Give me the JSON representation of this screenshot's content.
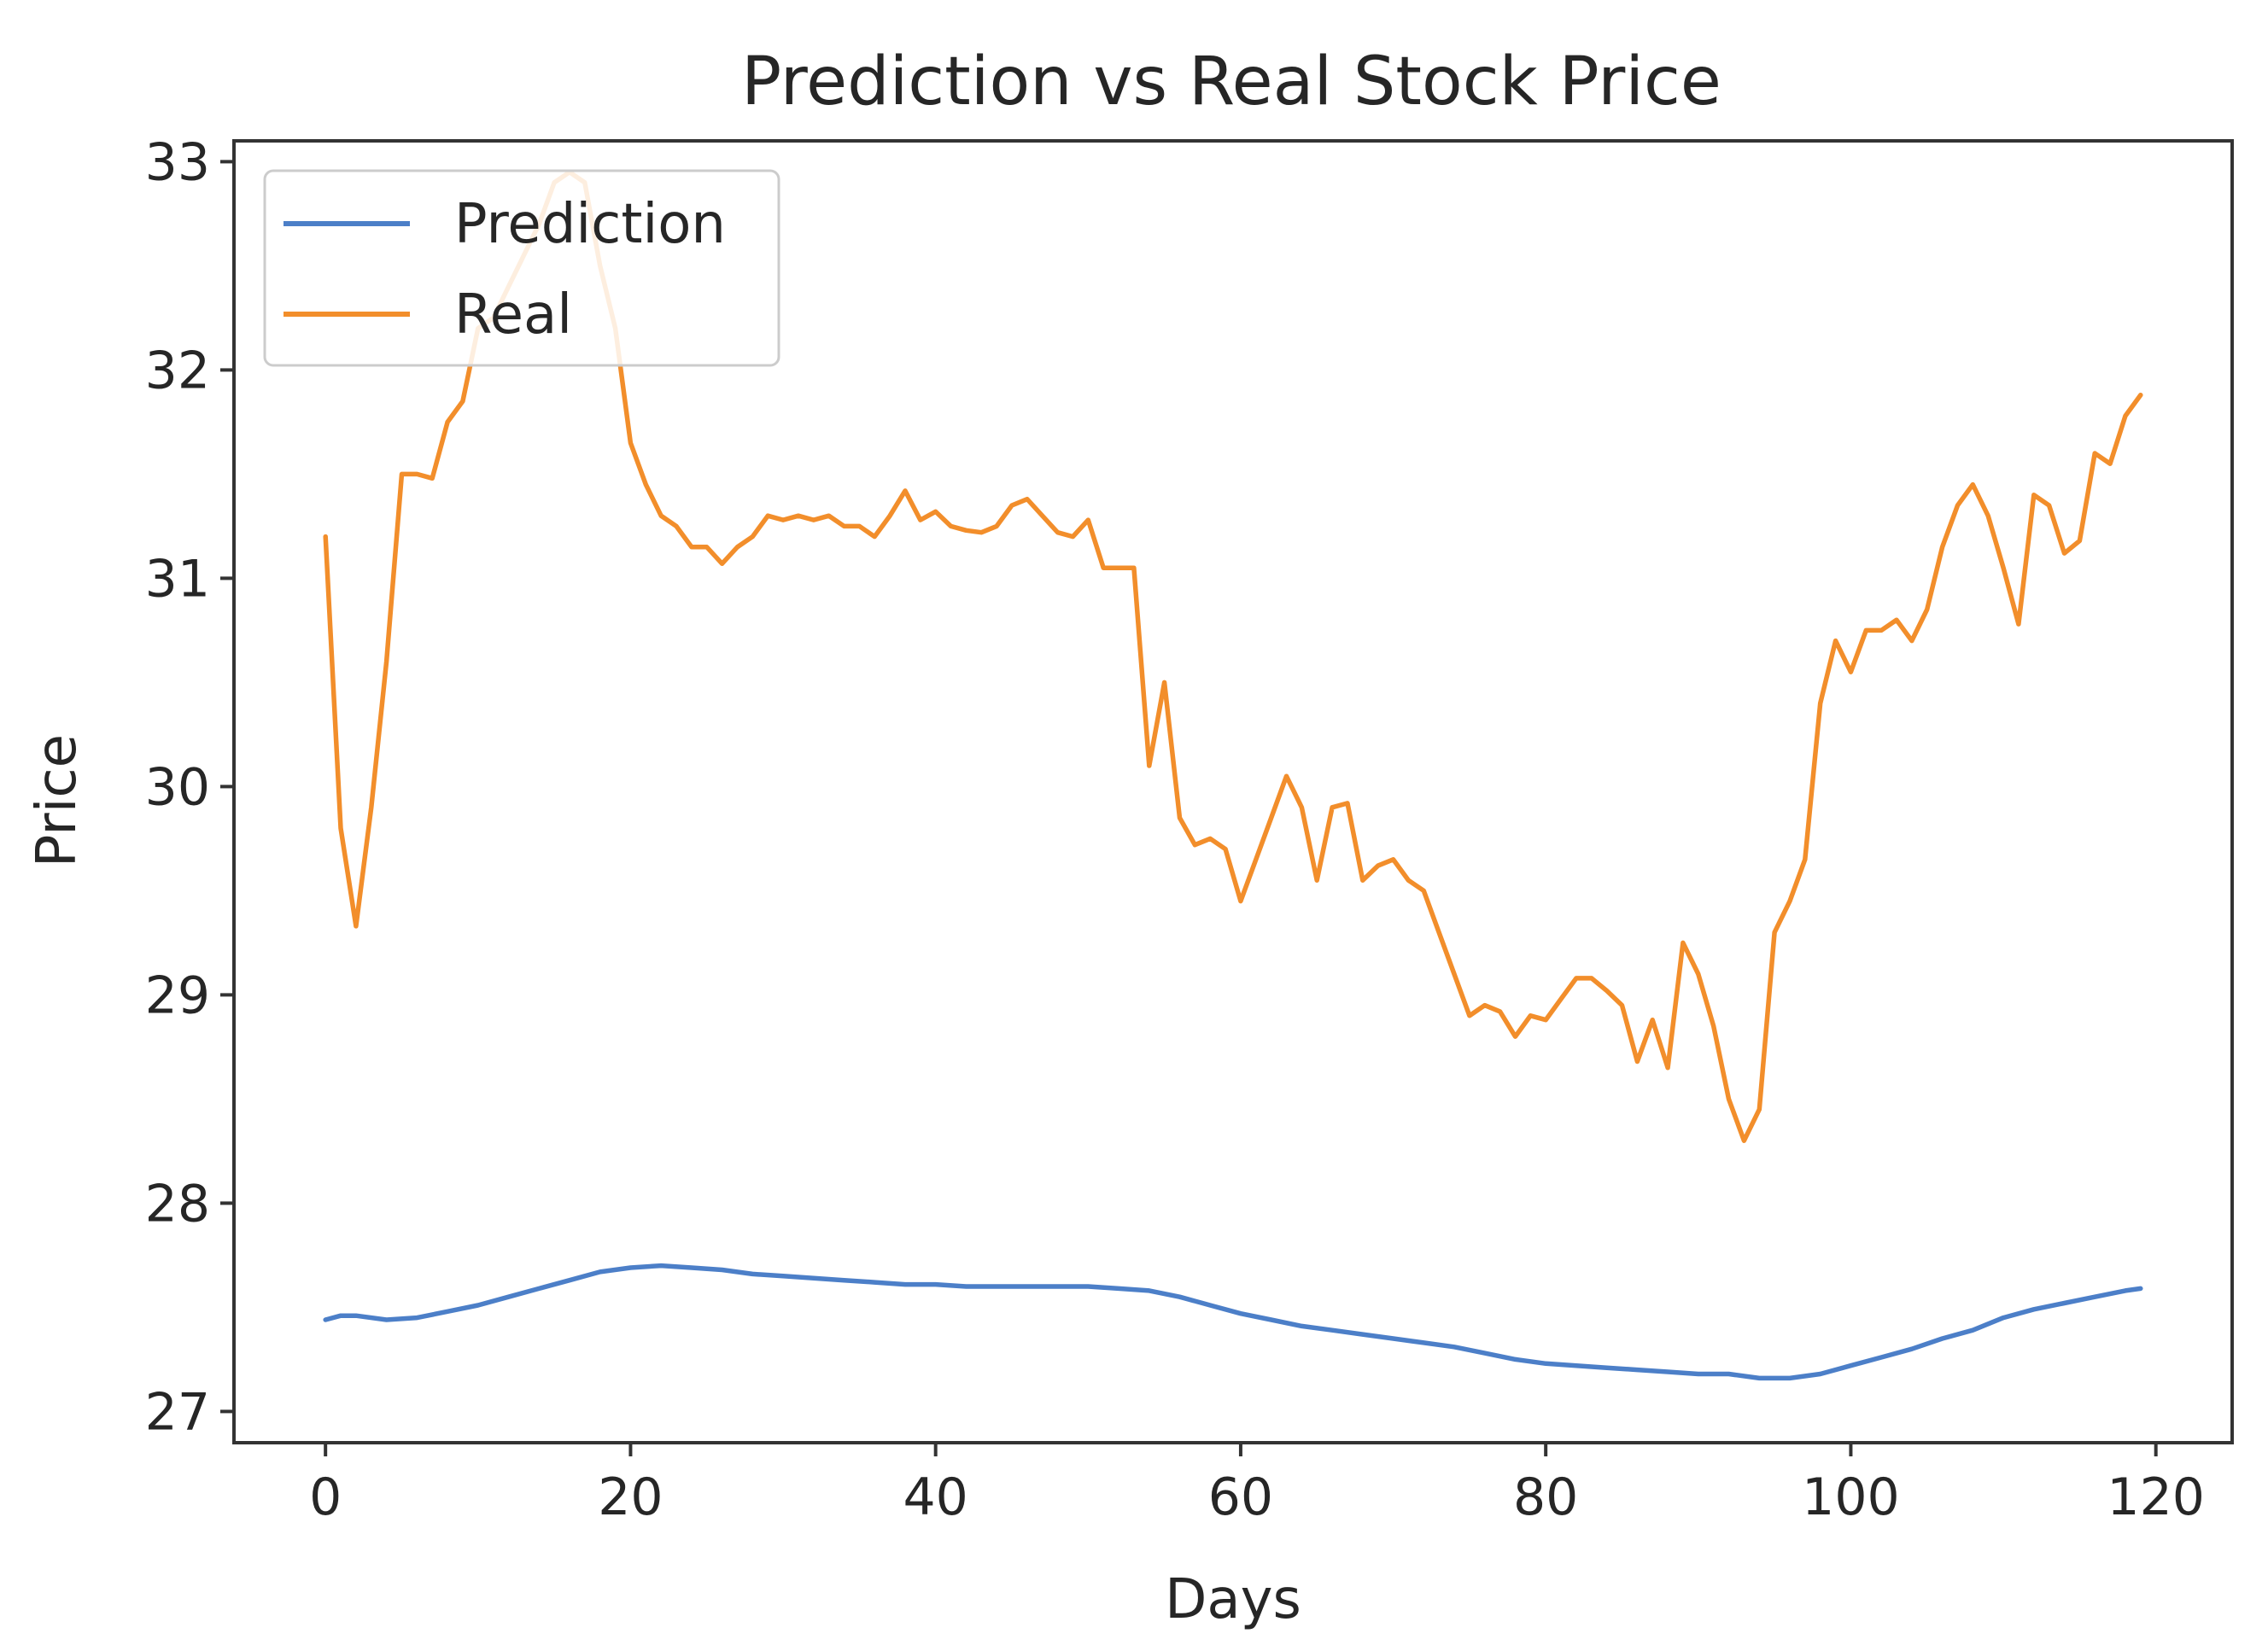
{
  "chart_data": {
    "type": "line",
    "title": "Prediction vs Real Stock Price",
    "xlabel": "Days",
    "ylabel": "Price",
    "xlim": [
      -6,
      125
    ],
    "ylim": [
      26.85,
      33.1
    ],
    "xticks": [
      0,
      20,
      40,
      60,
      80,
      100,
      120
    ],
    "yticks": [
      27,
      28,
      29,
      30,
      31,
      32,
      33
    ],
    "grid": false,
    "legend_position": "top-left",
    "series": [
      {
        "name": "Prediction",
        "color": "#4c7fc8",
        "x": [
          0,
          1,
          2,
          4,
          6,
          8,
          10,
          12,
          14,
          16,
          18,
          20,
          22,
          24,
          26,
          28,
          30,
          32,
          34,
          36,
          38,
          40,
          42,
          44,
          46,
          48,
          50,
          52,
          54,
          56,
          58,
          60,
          62,
          64,
          66,
          68,
          70,
          72,
          74,
          76,
          78,
          80,
          82,
          84,
          86,
          88,
          90,
          92,
          94,
          96,
          98,
          100,
          102,
          104,
          106,
          108,
          110,
          112,
          114,
          116,
          118,
          119
        ],
        "y": [
          27.44,
          27.46,
          27.46,
          27.44,
          27.45,
          27.48,
          27.51,
          27.55,
          27.59,
          27.63,
          27.67,
          27.69,
          27.7,
          27.69,
          27.68,
          27.66,
          27.65,
          27.64,
          27.63,
          27.62,
          27.61,
          27.61,
          27.6,
          27.6,
          27.6,
          27.6,
          27.6,
          27.59,
          27.58,
          27.55,
          27.51,
          27.47,
          27.44,
          27.41,
          27.39,
          27.37,
          27.35,
          27.33,
          27.31,
          27.28,
          27.25,
          27.23,
          27.22,
          27.21,
          27.2,
          27.19,
          27.18,
          27.18,
          27.16,
          27.16,
          27.18,
          27.22,
          27.26,
          27.3,
          27.35,
          27.39,
          27.45,
          27.49,
          27.52,
          27.55,
          27.58,
          27.59
        ]
      },
      {
        "name": "Real",
        "color": "#f28e2b",
        "x": [
          0,
          1,
          2,
          3,
          4,
          5,
          6,
          7,
          8,
          9,
          10,
          11,
          12,
          13,
          14,
          15,
          16,
          17,
          18,
          19,
          20,
          21,
          22,
          23,
          24,
          25,
          26,
          27,
          28,
          29,
          30,
          31,
          32,
          33,
          34,
          35,
          36,
          37,
          38,
          39,
          40,
          41,
          42,
          43,
          44,
          45,
          46,
          47,
          48,
          49,
          50,
          51,
          52,
          53,
          54,
          55,
          56,
          57,
          58,
          59,
          60,
          61,
          62,
          63,
          64,
          65,
          66,
          67,
          68,
          69,
          70,
          71,
          72,
          73,
          74,
          75,
          76,
          77,
          78,
          79,
          80,
          81,
          82,
          83,
          84,
          85,
          86,
          87,
          88,
          89,
          90,
          91,
          92,
          93,
          94,
          95,
          96,
          97,
          98,
          99,
          100,
          101,
          102,
          103,
          104,
          105,
          106,
          107,
          108,
          109,
          110,
          111,
          112,
          113,
          114,
          115,
          116,
          117,
          118,
          119
        ],
        "y": [
          31.2,
          29.8,
          29.33,
          29.9,
          30.6,
          31.5,
          31.5,
          31.48,
          31.75,
          31.85,
          32.2,
          32.25,
          32.4,
          32.55,
          32.7,
          32.9,
          32.95,
          32.9,
          32.5,
          32.2,
          31.65,
          31.45,
          31.3,
          31.25,
          31.15,
          31.15,
          31.07,
          31.15,
          31.2,
          31.3,
          31.28,
          31.3,
          31.28,
          31.3,
          31.25,
          31.25,
          31.2,
          31.3,
          31.42,
          31.28,
          31.32,
          31.25,
          31.23,
          31.22,
          31.25,
          31.35,
          31.38,
          31.3,
          31.22,
          31.2,
          31.28,
          31.05,
          31.05,
          31.05,
          30.1,
          30.5,
          29.85,
          29.72,
          29.75,
          29.7,
          29.45,
          29.65,
          29.85,
          30.05,
          29.9,
          29.55,
          29.9,
          29.92,
          29.55,
          29.62,
          29.65,
          29.55,
          29.5,
          29.3,
          29.1,
          28.9,
          28.95,
          28.92,
          28.8,
          28.9,
          28.88,
          28.98,
          29.08,
          29.08,
          29.02,
          28.95,
          28.68,
          28.88,
          28.65,
          29.25,
          29.1,
          28.85,
          28.5,
          28.3,
          28.45,
          29.3,
          29.45,
          29.65,
          30.4,
          30.7,
          30.55,
          30.75,
          30.75,
          30.8,
          30.7,
          30.85,
          31.15,
          31.35,
          31.45,
          31.3,
          31.05,
          30.78,
          31.4,
          31.35,
          31.12,
          31.18,
          31.6,
          31.55,
          31.78,
          31.88
        ]
      }
    ]
  }
}
